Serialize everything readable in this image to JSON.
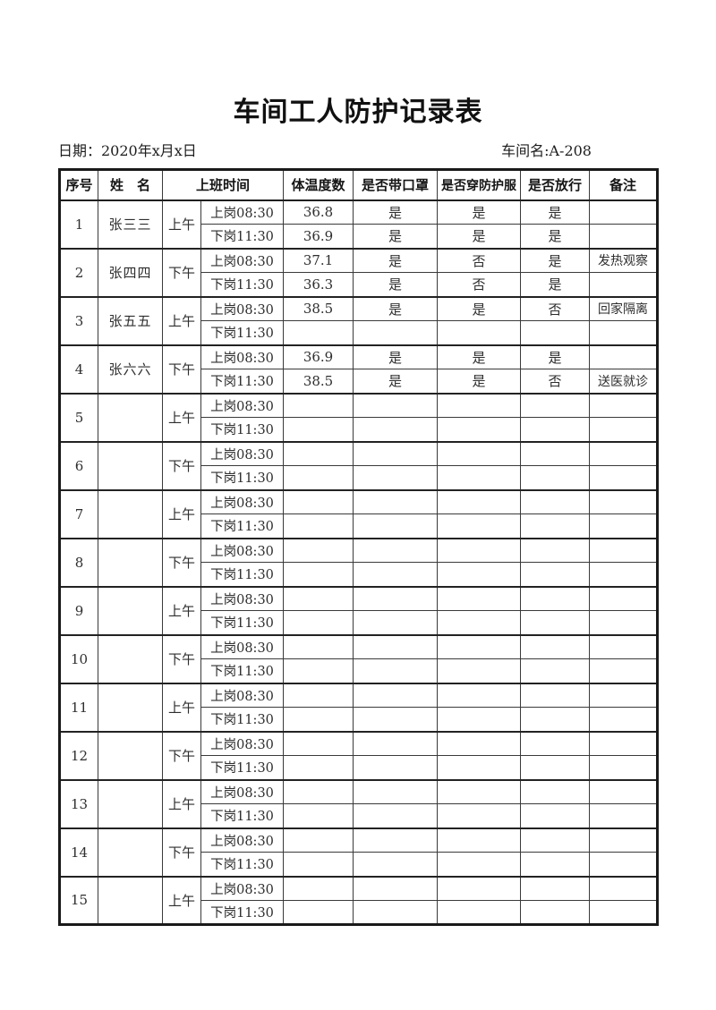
{
  "page": {
    "title": "车间工人防护记录表",
    "date_label": "日期：2020年x月x日",
    "workshop_label": "车间名:A-208"
  },
  "table": {
    "headers": [
      "序号",
      "姓　名",
      "上班时间",
      "体温度数",
      "是否带口罩",
      "是否穿防护服",
      "是否放行",
      "备注"
    ],
    "rows": [
      {
        "no": "1",
        "name": "张三三",
        "shift": "上午",
        "lines": [
          {
            "time": "上岗08:30",
            "temp": "36.8",
            "mask": "是",
            "suit": "是",
            "pass": "是",
            "remark": ""
          },
          {
            "time": "下岗11:30",
            "temp": "36.9",
            "mask": "是",
            "suit": "是",
            "pass": "是",
            "remark": ""
          }
        ]
      },
      {
        "no": "2",
        "name": "张四四",
        "shift": "下午",
        "lines": [
          {
            "time": "上岗08:30",
            "temp": "37.1",
            "mask": "是",
            "suit": "否",
            "pass": "是",
            "remark": "发热观察"
          },
          {
            "time": "下岗11:30",
            "temp": "36.3",
            "mask": "是",
            "suit": "否",
            "pass": "是",
            "remark": ""
          }
        ]
      },
      {
        "no": "3",
        "name": "张五五",
        "shift": "上午",
        "lines": [
          {
            "time": "上岗08:30",
            "temp": "38.5",
            "mask": "是",
            "suit": "是",
            "pass": "否",
            "remark": "回家隔离"
          },
          {
            "time": "下岗11:30",
            "temp": "",
            "mask": "",
            "suit": "",
            "pass": "",
            "remark": ""
          }
        ]
      },
      {
        "no": "4",
        "name": "张六六",
        "shift": "下午",
        "lines": [
          {
            "time": "上岗08:30",
            "temp": "36.9",
            "mask": "是",
            "suit": "是",
            "pass": "是",
            "remark": ""
          },
          {
            "time": "下岗11:30",
            "temp": "38.5",
            "mask": "是",
            "suit": "是",
            "pass": "否",
            "remark": "送医就诊"
          }
        ]
      },
      {
        "no": "5",
        "name": "",
        "shift": "上午",
        "lines": [
          {
            "time": "上岗08:30",
            "temp": "",
            "mask": "",
            "suit": "",
            "pass": "",
            "remark": ""
          },
          {
            "time": "下岗11:30",
            "temp": "",
            "mask": "",
            "suit": "",
            "pass": "",
            "remark": ""
          }
        ]
      },
      {
        "no": "6",
        "name": "",
        "shift": "下午",
        "lines": [
          {
            "time": "上岗08:30",
            "temp": "",
            "mask": "",
            "suit": "",
            "pass": "",
            "remark": ""
          },
          {
            "time": "下岗11:30",
            "temp": "",
            "mask": "",
            "suit": "",
            "pass": "",
            "remark": ""
          }
        ]
      },
      {
        "no": "7",
        "name": "",
        "shift": "上午",
        "lines": [
          {
            "time": "上岗08:30",
            "temp": "",
            "mask": "",
            "suit": "",
            "pass": "",
            "remark": ""
          },
          {
            "time": "下岗11:30",
            "temp": "",
            "mask": "",
            "suit": "",
            "pass": "",
            "remark": ""
          }
        ]
      },
      {
        "no": "8",
        "name": "",
        "shift": "下午",
        "lines": [
          {
            "time": "上岗08:30",
            "temp": "",
            "mask": "",
            "suit": "",
            "pass": "",
            "remark": ""
          },
          {
            "time": "下岗11:30",
            "temp": "",
            "mask": "",
            "suit": "",
            "pass": "",
            "remark": ""
          }
        ]
      },
      {
        "no": "9",
        "name": "",
        "shift": "上午",
        "lines": [
          {
            "time": "上岗08:30",
            "temp": "",
            "mask": "",
            "suit": "",
            "pass": "",
            "remark": ""
          },
          {
            "time": "下岗11:30",
            "temp": "",
            "mask": "",
            "suit": "",
            "pass": "",
            "remark": ""
          }
        ]
      },
      {
        "no": "10",
        "name": "",
        "shift": "下午",
        "lines": [
          {
            "time": "上岗08:30",
            "temp": "",
            "mask": "",
            "suit": "",
            "pass": "",
            "remark": ""
          },
          {
            "time": "下岗11:30",
            "temp": "",
            "mask": "",
            "suit": "",
            "pass": "",
            "remark": ""
          }
        ]
      },
      {
        "no": "11",
        "name": "",
        "shift": "上午",
        "lines": [
          {
            "time": "上岗08:30",
            "temp": "",
            "mask": "",
            "suit": "",
            "pass": "",
            "remark": ""
          },
          {
            "time": "下岗11:30",
            "temp": "",
            "mask": "",
            "suit": "",
            "pass": "",
            "remark": ""
          }
        ]
      },
      {
        "no": "12",
        "name": "",
        "shift": "下午",
        "lines": [
          {
            "time": "上岗08:30",
            "temp": "",
            "mask": "",
            "suit": "",
            "pass": "",
            "remark": ""
          },
          {
            "time": "下岗11:30",
            "temp": "",
            "mask": "",
            "suit": "",
            "pass": "",
            "remark": ""
          }
        ]
      },
      {
        "no": "13",
        "name": "",
        "shift": "上午",
        "lines": [
          {
            "time": "上岗08:30",
            "temp": "",
            "mask": "",
            "suit": "",
            "pass": "",
            "remark": ""
          },
          {
            "time": "下岗11:30",
            "temp": "",
            "mask": "",
            "suit": "",
            "pass": "",
            "remark": ""
          }
        ]
      },
      {
        "no": "14",
        "name": "",
        "shift": "下午",
        "lines": [
          {
            "time": "上岗08:30",
            "temp": "",
            "mask": "",
            "suit": "",
            "pass": "",
            "remark": ""
          },
          {
            "time": "下岗11:30",
            "temp": "",
            "mask": "",
            "suit": "",
            "pass": "",
            "remark": ""
          }
        ]
      },
      {
        "no": "15",
        "name": "",
        "shift": "上午",
        "lines": [
          {
            "time": "上岗08:30",
            "temp": "",
            "mask": "",
            "suit": "",
            "pass": "",
            "remark": ""
          },
          {
            "time": "下岗11:30",
            "temp": "",
            "mask": "",
            "suit": "",
            "pass": "",
            "remark": ""
          }
        ]
      }
    ]
  }
}
